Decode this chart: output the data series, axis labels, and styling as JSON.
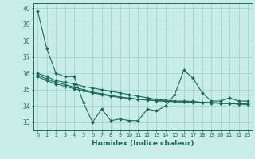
{
  "title": "",
  "xlabel": "Humidex (Indice chaleur)",
  "bg_color": "#c8ece8",
  "line_color": "#1a6b5e",
  "grid_color": "#a8d8d0",
  "ylim": [
    32.5,
    40.3
  ],
  "xlim": [
    -0.5,
    23.5
  ],
  "yticks": [
    33,
    34,
    35,
    36,
    37,
    38,
    39,
    40
  ],
  "xtick_labels": [
    "0",
    "1",
    "2",
    "3",
    "4",
    "5",
    "6",
    "7",
    "8",
    "9",
    "10",
    "11",
    "12",
    "13",
    "14",
    "15",
    "16",
    "17",
    "18",
    "19",
    "20",
    "21",
    "22",
    "23"
  ],
  "series1": [
    39.8,
    37.5,
    36.0,
    35.8,
    35.8,
    34.2,
    33.0,
    33.8,
    33.1,
    33.2,
    33.1,
    33.1,
    33.8,
    33.7,
    34.0,
    34.7,
    36.2,
    35.7,
    34.8,
    34.3,
    34.3,
    34.5,
    34.3,
    34.3
  ],
  "series2": [
    36.0,
    35.8,
    35.55,
    35.45,
    35.35,
    35.2,
    35.1,
    35.0,
    34.9,
    34.8,
    34.7,
    34.6,
    34.5,
    34.4,
    34.35,
    34.3,
    34.3,
    34.28,
    34.22,
    34.2,
    34.18,
    34.15,
    34.12,
    34.1
  ],
  "series3": [
    35.9,
    35.65,
    35.45,
    35.3,
    35.15,
    35.0,
    34.85,
    34.75,
    34.65,
    34.55,
    34.48,
    34.42,
    34.38,
    34.33,
    34.3,
    34.28,
    34.26,
    34.24,
    34.22,
    34.2,
    34.18,
    34.16,
    34.14,
    34.12
  ],
  "series4": [
    35.8,
    35.55,
    35.35,
    35.2,
    35.05,
    34.92,
    34.8,
    34.7,
    34.6,
    34.52,
    34.46,
    34.4,
    34.36,
    34.32,
    34.28,
    34.26,
    34.24,
    34.22,
    34.2,
    34.18,
    34.16,
    34.14,
    34.12,
    34.1
  ]
}
